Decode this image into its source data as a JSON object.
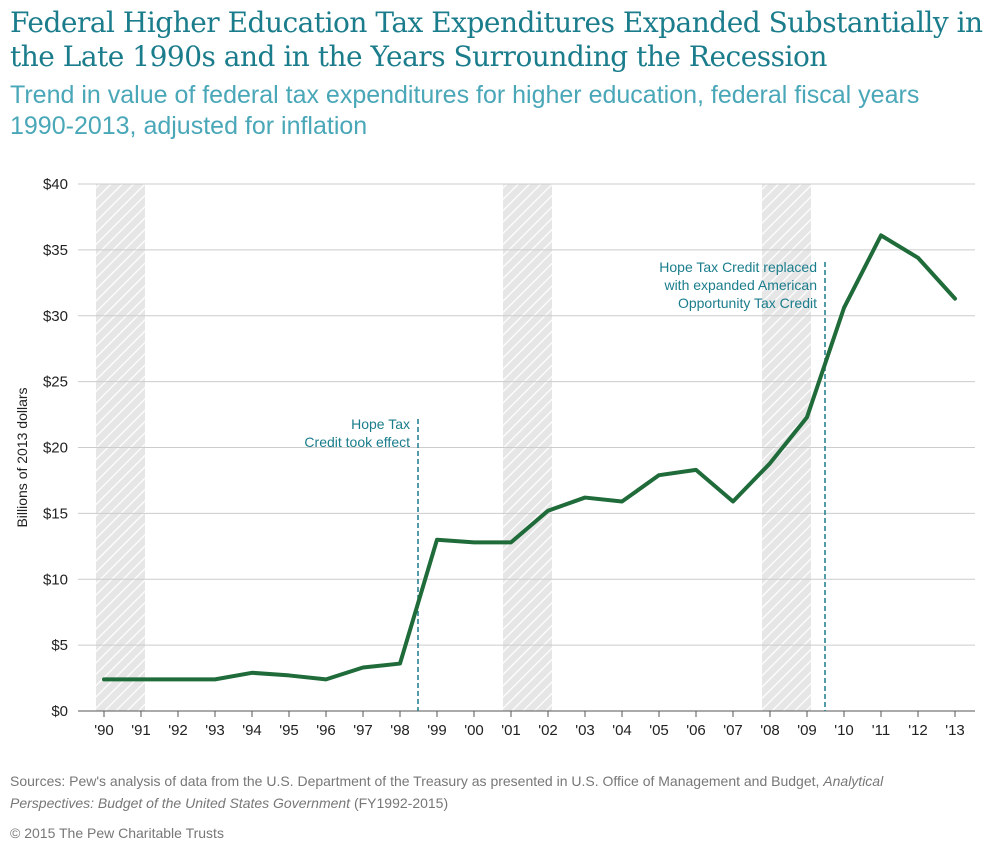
{
  "header": {
    "title": "Federal Higher Education Tax Expenditures Expanded Substantially in the Late 1990s and in the Years Surrounding the Recession",
    "subtitle": "Trend in value of federal tax expenditures for higher education, federal fiscal years 1990-2013, adjusted for inflation"
  },
  "chart_data": {
    "type": "line",
    "title": "Federal Higher Education Tax Expenditures Expanded Substantially in the Late 1990s and in the Years Surrounding the Recession",
    "subtitle": "Trend in value of federal tax expenditures for higher education, federal fiscal years 1990-2013, adjusted for inflation",
    "xlabel": "",
    "ylabel": "Billions of 2013 dollars",
    "ylim": [
      0,
      40
    ],
    "y_ticks": [
      0,
      5,
      10,
      15,
      20,
      25,
      30,
      35,
      40
    ],
    "y_tick_labels": [
      "$0",
      "$5",
      "$10",
      "$15",
      "$20",
      "$25",
      "$30",
      "$35",
      "$40"
    ],
    "x_tick_labels": [
      "'90",
      "'91",
      "'92",
      "'93",
      "'94",
      "'95",
      "'96",
      "'97",
      "'98",
      "'99",
      "'00",
      "'01",
      "'02",
      "'03",
      "'04",
      "'05",
      "'06",
      "'07",
      "'08",
      "'09",
      "'10",
      "'11",
      "'12",
      "'13"
    ],
    "grid": true,
    "line_color": "#1f6b3a",
    "series": [
      {
        "name": "",
        "x": [
          "'90",
          "'91",
          "'92",
          "'93",
          "'94",
          "'95",
          "'96",
          "'97",
          "'98",
          "'99",
          "'00",
          "'01",
          "'02",
          "'03",
          "'04",
          "'05",
          "'06",
          "'07",
          "'08",
          "'09",
          "'10",
          "'11",
          "'12",
          "'13"
        ],
        "values": [
          2.4,
          2.4,
          2.4,
          2.4,
          2.9,
          2.7,
          2.4,
          3.3,
          3.6,
          13.0,
          12.8,
          12.8,
          15.2,
          16.2,
          15.9,
          17.9,
          18.3,
          15.9,
          18.8,
          22.3,
          30.6,
          36.1,
          34.4,
          31.3
        ]
      }
    ],
    "recession_bands": [
      {
        "start": "'90",
        "end": "'91"
      },
      {
        "start": "'01",
        "end": "'02"
      },
      {
        "start": "'08",
        "end": "'09"
      }
    ],
    "annotations": [
      {
        "text_lines": [
          "Hope Tax",
          "Credit took effect"
        ],
        "at": "'98"
      },
      {
        "text_lines": [
          "Hope Tax Credit replaced",
          "with expanded American",
          "Opportunity Tax Credit"
        ],
        "at": "'09"
      }
    ]
  },
  "footer": {
    "source_prefix": "Sources: Pew's analysis of data from the U.S. Department of the Treasury as presented in U.S. Office of Management and Budget, ",
    "source_italic": "Analytical Perspectives: Budget of the United States Government",
    "source_suffix": " (FY1992-2015)",
    "copyright": "© 2015 The Pew Charitable Trusts"
  }
}
